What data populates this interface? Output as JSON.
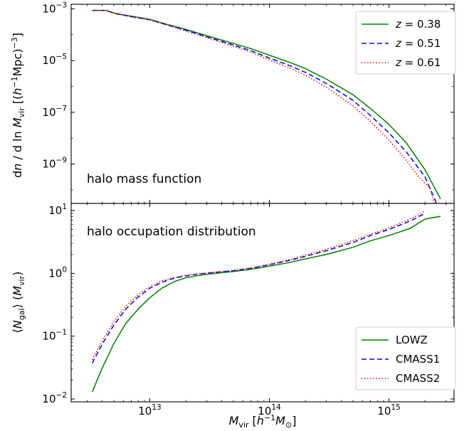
{
  "chart_data": [
    {
      "type": "line",
      "annotation": "halo mass function",
      "ylabel": "dn / d ln M_vir [(h^-1 Mpc)^-3]",
      "xlabel": "",
      "xscale": "log",
      "yscale": "log",
      "xlim": [
        2200000000000.0,
        3500000000000000.0
      ],
      "ylim": [
        3e-11,
        0.0015
      ],
      "grid": false,
      "legend_position": "top-right",
      "x_ticks": [
        {
          "value": 10000000000000.0,
          "base": "10",
          "exp": "13"
        },
        {
          "value": 100000000000000.0,
          "base": "10",
          "exp": "14"
        },
        {
          "value": 1000000000000000.0,
          "base": "10",
          "exp": "15"
        }
      ],
      "y_ticks": [
        {
          "value": 0.001,
          "base": "10",
          "exp": "−3"
        },
        {
          "value": 1e-05,
          "base": "10",
          "exp": "−5"
        },
        {
          "value": 1e-07,
          "base": "10",
          "exp": "−7"
        },
        {
          "value": 1e-09,
          "base": "10",
          "exp": "−9"
        }
      ],
      "series": [
        {
          "name": "z = 0.38",
          "color": "#008000",
          "dash": "solid",
          "x": [
            3300000000000.0,
            4300000000000.0,
            5200000000000.0,
            7000000000000.0,
            10000000000000.0,
            14000000000000.0,
            20000000000000.0,
            30000000000000.0,
            50000000000000.0,
            70000000000000.0,
            100000000000000.0,
            150000000000000.0,
            200000000000000.0,
            300000000000000.0,
            500000000000000.0,
            700000000000000.0,
            1000000000000000.0,
            1400000000000000.0,
            2000000000000000.0,
            2700000000000000.0
          ],
          "y": [
            0.00087,
            0.00087,
            0.00066,
            0.00052,
            0.00039,
            0.00025,
            0.00016,
            9.1e-05,
            4.6e-05,
            2.9e-05,
            1.6e-05,
            8.3e-06,
            4.9e-06,
            1.9e-06,
            4.8e-07,
            1.4e-07,
            3.4e-08,
            6.5e-09,
            6e-10,
            4.5e-11
          ]
        },
        {
          "name": "z = 0.51",
          "color": "#0000ee",
          "dash": "dashed",
          "x": [
            3300000000000.0,
            4300000000000.0,
            5200000000000.0,
            7000000000000.0,
            10000000000000.0,
            14000000000000.0,
            20000000000000.0,
            30000000000000.0,
            50000000000000.0,
            70000000000000.0,
            100000000000000.0,
            150000000000000.0,
            200000000000000.0,
            300000000000000.0,
            500000000000000.0,
            700000000000000.0,
            1000000000000000.0,
            1400000000000000.0,
            2000000000000000.0,
            2700000000000000.0
          ],
          "y": [
            0.00087,
            0.00087,
            0.00065,
            0.0005,
            0.00038,
            0.00024,
            0.00015,
            8.3e-05,
            4e-05,
            2.4e-05,
            1.25e-05,
            6.2e-06,
            3.5e-06,
            1.3e-06,
            2.9e-07,
            7.5e-08,
            1.6e-08,
            2.9e-09,
            3.2e-10,
            1.3e-11
          ]
        },
        {
          "name": "z = 0.61",
          "color": "#ff0000",
          "dash": "dotted",
          "x": [
            3300000000000.0,
            4300000000000.0,
            5200000000000.0,
            7000000000000.0,
            10000000000000.0,
            14000000000000.0,
            20000000000000.0,
            30000000000000.0,
            50000000000000.0,
            70000000000000.0,
            100000000000000.0,
            150000000000000.0,
            200000000000000.0,
            300000000000000.0,
            500000000000000.0,
            700000000000000.0,
            1000000000000000.0,
            1400000000000000.0,
            1800000000000000.0,
            2200000000000000.0,
            2700000000000000.0
          ],
          "y": [
            0.00086,
            0.00086,
            0.00064,
            0.00049,
            0.00037,
            0.00023,
            0.00014,
            7.6e-05,
            3.6e-05,
            2.1e-05,
            1.05e-05,
            5e-06,
            2.7e-06,
            9.2e-07,
            1.8e-07,
            4.4e-08,
            8.4e-09,
            1.35e-09,
            2.9e-10,
            1.2e-10,
            3.7e-12
          ]
        }
      ]
    },
    {
      "type": "line",
      "annotation": "halo occupation distribution",
      "ylabel": "⟨N_gal⟩(M_vir)",
      "xlabel": "M_vir [h^-1 M_⊙]",
      "xscale": "log",
      "yscale": "log",
      "xlim": [
        2200000000000.0,
        3500000000000000.0
      ],
      "ylim": [
        0.009,
        13
      ],
      "grid": false,
      "legend_position": "bottom-right",
      "x_ticks": [
        {
          "value": 10000000000000.0,
          "base": "10",
          "exp": "13"
        },
        {
          "value": 100000000000000.0,
          "base": "10",
          "exp": "14"
        },
        {
          "value": 1000000000000000.0,
          "base": "10",
          "exp": "15"
        }
      ],
      "y_ticks": [
        {
          "value": 10,
          "base": "10",
          "exp": "1"
        },
        {
          "value": 1,
          "base": "10",
          "exp": "0"
        },
        {
          "value": 0.1,
          "base": "10",
          "exp": "−1"
        },
        {
          "value": 0.01,
          "base": "10",
          "exp": "−2"
        }
      ],
      "series": [
        {
          "name": "LOWZ",
          "color": "#008000",
          "dash": "solid",
          "x": [
            3300000000000.0,
            4000000000000.0,
            5000000000000.0,
            6300000000000.0,
            8000000000000.0,
            10000000000000.0,
            12600000000000.0,
            16000000000000.0,
            20000000000000.0,
            25000000000000.0,
            32000000000000.0,
            50000000000000.0,
            70000000000000.0,
            100000000000000.0,
            150000000000000.0,
            200000000000000.0,
            300000000000000.0,
            500000000000000.0,
            700000000000000.0,
            1000000000000000.0,
            1500000000000000.0,
            2000000000000000.0,
            2700000000000000.0
          ],
          "y": [
            0.013,
            0.031,
            0.076,
            0.16,
            0.27,
            0.41,
            0.58,
            0.74,
            0.85,
            0.92,
            0.98,
            1.07,
            1.16,
            1.3,
            1.5,
            1.7,
            2.0,
            2.6,
            3.3,
            4.0,
            5.2,
            7.3,
            8.1
          ]
        },
        {
          "name": "CMASS1",
          "color": "#0000ee",
          "dash": "dashed",
          "x": [
            3300000000000.0,
            4000000000000.0,
            5000000000000.0,
            6300000000000.0,
            8000000000000.0,
            10000000000000.0,
            12600000000000.0,
            16000000000000.0,
            20000000000000.0,
            25000000000000.0,
            32000000000000.0,
            50000000000000.0,
            70000000000000.0,
            100000000000000.0,
            150000000000000.0,
            200000000000000.0,
            300000000000000.0,
            500000000000000.0,
            700000000000000.0,
            1000000000000000.0,
            1500000000000000.0,
            2000000000000000.0
          ],
          "y": [
            0.037,
            0.075,
            0.15,
            0.27,
            0.42,
            0.58,
            0.72,
            0.84,
            0.91,
            0.97,
            1.02,
            1.1,
            1.2,
            1.37,
            1.62,
            1.87,
            2.3,
            3.1,
            4.0,
            5.0,
            6.8,
            9.0
          ]
        },
        {
          "name": "CMASS2",
          "color": "#ff0000",
          "dash": "dotted",
          "x": [
            3300000000000.0,
            4000000000000.0,
            5000000000000.0,
            6300000000000.0,
            8000000000000.0,
            10000000000000.0,
            12600000000000.0,
            16000000000000.0,
            20000000000000.0,
            25000000000000.0,
            32000000000000.0,
            50000000000000.0,
            70000000000000.0,
            100000000000000.0,
            150000000000000.0,
            200000000000000.0,
            300000000000000.0,
            500000000000000.0,
            700000000000000.0,
            1000000000000000.0,
            1500000000000000.0,
            2000000000000000.0
          ],
          "y": [
            0.042,
            0.085,
            0.17,
            0.3,
            0.46,
            0.62,
            0.76,
            0.86,
            0.93,
            0.98,
            1.03,
            1.12,
            1.22,
            1.4,
            1.67,
            1.95,
            2.42,
            3.3,
            4.2,
            5.3,
            7.3,
            9.7
          ]
        }
      ]
    }
  ]
}
